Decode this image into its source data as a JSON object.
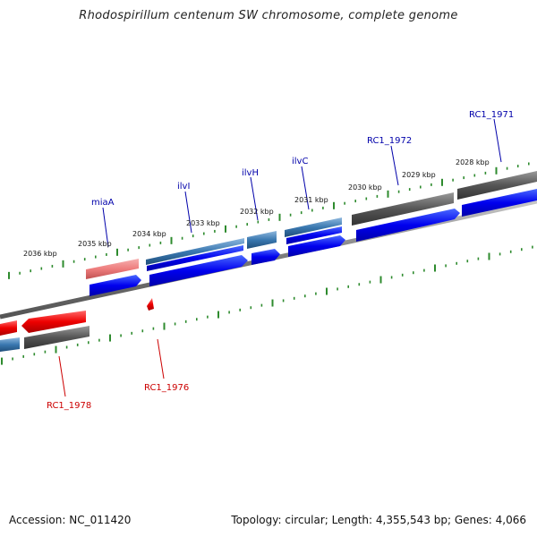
{
  "title": "Rhodospirillum centenum SW chromosome, complete genome",
  "footer": {
    "accession": "Accession: NC_011420",
    "topology": "Topology: circular; Length: 4,355,543 bp; Genes: 4,066"
  },
  "colors": {
    "forward_gene": "#0000ee",
    "reverse_gene": "#ee0000",
    "rna_gene": "#3a78b0",
    "pseudo_light": "#ee7d7d",
    "grey_feature": "#555555",
    "backbone": "#777777",
    "tick": "#2e8b2e",
    "forward_label": "#0000aa",
    "reverse_label": "#cc0000"
  },
  "kbp_labels": [
    "2036 kbp",
    "2035 kbp",
    "2034 kbp",
    "2033 kbp",
    "2032 kbp",
    "2031 kbp",
    "2030 kbp",
    "2029 kbp",
    "2028 kbp"
  ],
  "gene_labels_top": [
    {
      "name": "miaA"
    },
    {
      "name": "ilvI"
    },
    {
      "name": "ilvH"
    },
    {
      "name": "ilvC"
    },
    {
      "name": "RC1_1972"
    },
    {
      "name": "RC1_1971"
    }
  ],
  "gene_labels_bottom": [
    {
      "name": "RC1_1978"
    },
    {
      "name": "RC1_1976"
    }
  ]
}
